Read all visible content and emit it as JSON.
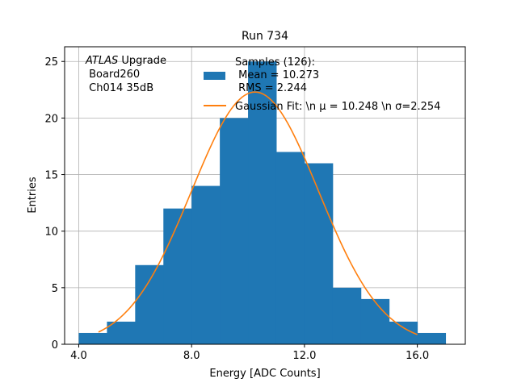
{
  "chart_data": {
    "type": "bar",
    "title": "Run 734",
    "xlabel": "Energy [ADC Counts]",
    "ylabel": "Entries",
    "xlim": [
      3.5,
      17.7
    ],
    "ylim": [
      0,
      26.3
    ],
    "x_ticks": [
      4.0,
      8.0,
      12.0,
      16.0
    ],
    "x_tick_labels": [
      "4.0",
      "8.0",
      "12.0",
      "16.0"
    ],
    "y_ticks": [
      0,
      5,
      10,
      15,
      20,
      25
    ],
    "y_tick_labels": [
      "0",
      "5",
      "10",
      "15",
      "20",
      "25"
    ],
    "grid": true,
    "bin_edges": [
      4,
      5,
      6,
      7,
      8,
      9,
      10,
      11,
      12,
      13,
      14,
      15,
      16,
      17
    ],
    "counts": [
      1,
      2,
      7,
      12,
      14,
      20,
      25,
      17,
      16,
      5,
      4,
      2,
      1
    ],
    "hist_color": "#1f77b4",
    "fit": {
      "mu": 10.248,
      "sigma": 2.254,
      "amplitude": 22.3,
      "x_range": [
        4.7,
        16.0
      ],
      "color": "#ff7f0e"
    },
    "annotation_lines": [
      "ATLAS Upgrade",
      " Board260",
      " Ch014 35dB"
    ],
    "annotation_italic": "ATLAS",
    "annotation_rest": " Upgrade",
    "legend_placement": "top-right",
    "legend": [
      {
        "text_lines": [
          "Samples (126):",
          " Mean = 10.273",
          " RMS = 2.244"
        ],
        "kind": "patch"
      },
      {
        "text_lines": [
          "Gaussian Fit: \\n μ = 10.248 \\n σ=2.254"
        ],
        "kind": "line"
      }
    ]
  }
}
